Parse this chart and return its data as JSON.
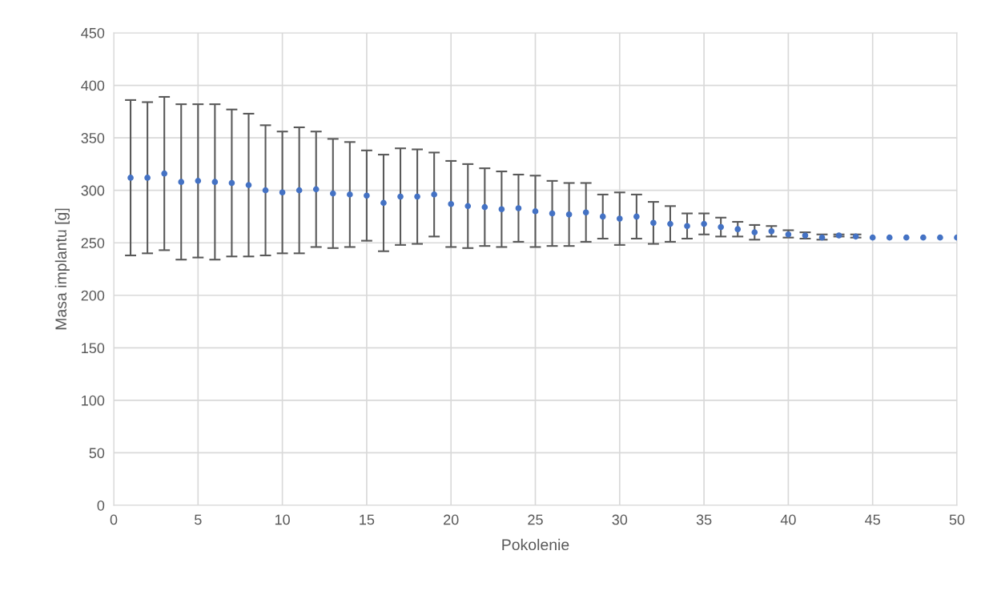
{
  "chart_data": {
    "type": "scatter",
    "xlabel": "Pokolenie",
    "ylabel": "Masa implantu [g]",
    "x": [
      1,
      2,
      3,
      4,
      5,
      6,
      7,
      8,
      9,
      10,
      11,
      12,
      13,
      14,
      15,
      16,
      17,
      18,
      19,
      20,
      21,
      22,
      23,
      24,
      25,
      26,
      27,
      28,
      29,
      30,
      31,
      32,
      33,
      34,
      35,
      36,
      37,
      38,
      39,
      40,
      41,
      42,
      43,
      44,
      45,
      46,
      47,
      48,
      49,
      50
    ],
    "series": [
      {
        "color": "#4472c4",
        "values": [
          312,
          312,
          316,
          308,
          309,
          308,
          307,
          305,
          300,
          298,
          300,
          301,
          297,
          296,
          295,
          288,
          294,
          294,
          296,
          287,
          285,
          284,
          282,
          283,
          280,
          278,
          277,
          279,
          275,
          273,
          275,
          269,
          268,
          266,
          268,
          265,
          263,
          260,
          261,
          258,
          257,
          255,
          257,
          256,
          255,
          255,
          255,
          255,
          255,
          255
        ],
        "errors": [
          [
            238,
            386
          ],
          [
            240,
            384
          ],
          [
            243,
            389
          ],
          [
            234,
            382
          ],
          [
            236,
            382
          ],
          [
            234,
            382
          ],
          [
            237,
            377
          ],
          [
            237,
            373
          ],
          [
            238,
            362
          ],
          [
            240,
            356
          ],
          [
            240,
            360
          ],
          [
            246,
            356
          ],
          [
            245,
            349
          ],
          [
            246,
            346
          ],
          [
            252,
            338
          ],
          [
            242,
            334
          ],
          [
            248,
            340
          ],
          [
            249,
            339
          ],
          [
            256,
            336
          ],
          [
            246,
            328
          ],
          [
            245,
            325
          ],
          [
            247,
            321
          ],
          [
            246,
            318
          ],
          [
            251,
            315
          ],
          [
            246,
            314
          ],
          [
            247,
            309
          ],
          [
            247,
            307
          ],
          [
            251,
            307
          ],
          [
            254,
            296
          ],
          [
            248,
            298
          ],
          [
            254,
            296
          ],
          [
            249,
            289
          ],
          [
            251,
            285
          ],
          [
            254,
            278
          ],
          [
            258,
            278
          ],
          [
            256,
            274
          ],
          [
            256,
            270
          ],
          [
            253,
            267
          ],
          [
            256,
            266
          ],
          [
            255,
            262
          ],
          [
            254,
            260
          ],
          [
            253,
            258
          ],
          [
            256,
            258
          ],
          [
            255,
            258
          ],
          null,
          null,
          null,
          null,
          null,
          null
        ]
      }
    ],
    "xlim": [
      0,
      50
    ],
    "xticks": [
      0,
      5,
      10,
      15,
      20,
      25,
      30,
      35,
      40,
      45,
      50
    ],
    "ylim": [
      0,
      450
    ],
    "yticks": [
      0,
      50,
      100,
      150,
      200,
      250,
      300,
      350,
      400,
      450
    ],
    "grid": true,
    "marker": "circle",
    "legend": false
  }
}
